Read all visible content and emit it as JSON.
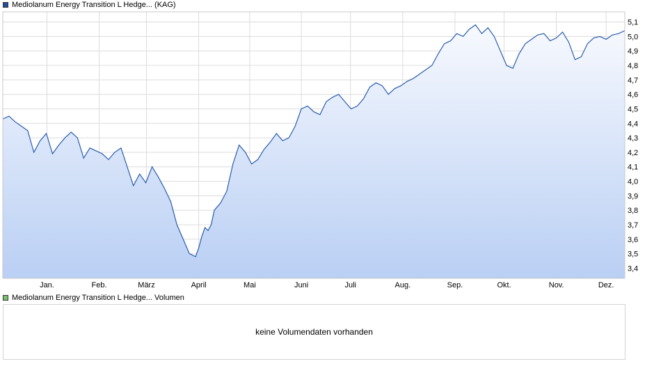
{
  "colors": {
    "price_line": "#2a5cad",
    "area_top": "#f7f9fe",
    "area_bottom": "#b9cff4",
    "grid": "#dcdcdc",
    "price_swatch": "#1f4f9a",
    "volume_swatch": "#77c36b"
  },
  "legend": {
    "price_label": "Mediolanum Energy Transition L Hedge... (KAG)",
    "volume_label": "Mediolanum Energy Transition L Hedge... Volumen"
  },
  "volume": {
    "empty_text": "keine Volumendaten vorhanden"
  },
  "chart_data": {
    "type": "area",
    "y_ticks": [
      "3,4",
      "3,5",
      "3,6",
      "3,7",
      "3,8",
      "3,9",
      "4,0",
      "4,1",
      "4,2",
      "4,3",
      "4,4",
      "4,5",
      "4,6",
      "4,7",
      "4,8",
      "4,9",
      "5,0",
      "5,1"
    ],
    "ylim": [
      3.33,
      5.17
    ],
    "xlim": [
      0,
      100
    ],
    "x_ticks": [
      {
        "label": "Jan.",
        "x": 7.1
      },
      {
        "label": "Feb.",
        "x": 15.5
      },
      {
        "label": "März",
        "x": 23.1
      },
      {
        "label": "April",
        "x": 31.5
      },
      {
        "label": "Mai",
        "x": 39.7
      },
      {
        "label": "Juni",
        "x": 48.0
      },
      {
        "label": "Juli",
        "x": 55.9
      },
      {
        "label": "Aug.",
        "x": 64.3
      },
      {
        "label": "Sep.",
        "x": 72.7
      },
      {
        "label": "Okt.",
        "x": 80.6
      },
      {
        "label": "Nov.",
        "x": 89.0
      },
      {
        "label": "Dez.",
        "x": 97.0
      }
    ],
    "series": [
      {
        "x": [
          0,
          1,
          2,
          3,
          4,
          5,
          6,
          7,
          8,
          9,
          10,
          11,
          12,
          13,
          14,
          15,
          16,
          17,
          18,
          19,
          20,
          21,
          22,
          23,
          24,
          25,
          26,
          27,
          28,
          29,
          30,
          31,
          31.5,
          32,
          32.5,
          33,
          33.5,
          34,
          35,
          36,
          37,
          38,
          39,
          40,
          41,
          42,
          43,
          44,
          45,
          46,
          47,
          48,
          49,
          50,
          51,
          52,
          53,
          54,
          55,
          56,
          57,
          58,
          59,
          60,
          61,
          62,
          63,
          64,
          65,
          66,
          67,
          68,
          69,
          70,
          71,
          72,
          73,
          74,
          75,
          76,
          77,
          78,
          79,
          80,
          81,
          82,
          83,
          84,
          85,
          86,
          87,
          88,
          89,
          90,
          91,
          92,
          93,
          94,
          95,
          96,
          97,
          98,
          99,
          100
        ],
        "values": [
          4.43,
          4.45,
          4.41,
          4.38,
          4.35,
          4.2,
          4.28,
          4.33,
          4.19,
          4.25,
          4.3,
          4.34,
          4.3,
          4.16,
          4.23,
          4.21,
          4.19,
          4.15,
          4.2,
          4.23,
          4.1,
          3.97,
          4.05,
          3.99,
          4.1,
          4.03,
          3.95,
          3.86,
          3.7,
          3.6,
          3.5,
          3.48,
          3.54,
          3.62,
          3.68,
          3.66,
          3.7,
          3.8,
          3.85,
          3.93,
          4.12,
          4.25,
          4.2,
          4.12,
          4.15,
          4.22,
          4.27,
          4.33,
          4.28,
          4.3,
          4.38,
          4.5,
          4.52,
          4.48,
          4.46,
          4.55,
          4.58,
          4.6,
          4.55,
          4.5,
          4.52,
          4.57,
          4.65,
          4.68,
          4.66,
          4.6,
          4.64,
          4.66,
          4.69,
          4.71,
          4.74,
          4.77,
          4.8,
          4.88,
          4.95,
          4.97,
          5.02,
          5.0,
          5.05,
          5.08,
          5.02,
          5.06,
          5.0,
          4.9,
          4.8,
          4.78,
          4.88,
          4.95,
          4.98,
          5.01,
          5.02,
          4.97,
          4.99,
          5.03,
          4.96,
          4.84,
          4.86,
          4.95,
          4.99,
          5.0,
          4.98,
          5.01,
          5.02,
          5.04
        ]
      }
    ],
    "grid": true,
    "legend": "top-left"
  }
}
